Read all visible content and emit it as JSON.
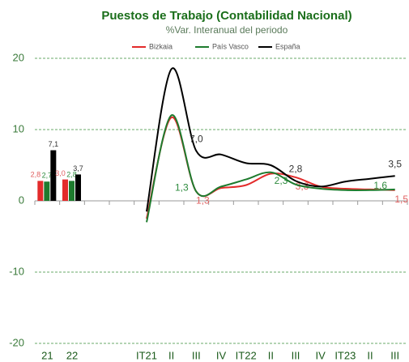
{
  "chart_data": [
    {
      "type": "bar",
      "title": "Puestos de Trabajo (Contabilidad Nacional)",
      "subtitle": "%Var. Interanual del periodo",
      "categories": [
        "21",
        "22"
      ],
      "series": [
        {
          "color": "#e32b2b",
          "values": [
            2.8,
            3.0
          ],
          "value_labels": [
            "2,8",
            "3,0"
          ]
        },
        {
          "color": "#1e7b2e",
          "values": [
            2.7,
            2.8
          ],
          "value_labels": [
            "2,7",
            "2,8"
          ]
        },
        {
          "color": "#000000",
          "values": [
            7.1,
            3.7
          ],
          "value_labels": [
            "7,1",
            "3,7"
          ]
        }
      ],
      "ylim": [
        -20,
        20
      ],
      "yticks": [
        -20,
        -10,
        0,
        10,
        20
      ],
      "grid": true
    },
    {
      "type": "line",
      "categories": [
        "IT21",
        "II",
        "III",
        "IV",
        "IT22",
        "II",
        "III",
        "IV",
        "IT23",
        "II",
        "III"
      ],
      "series": [
        {
          "name": "Bizkaia",
          "color": "#e32b2b",
          "values": [
            -2.5,
            11.7,
            1.3,
            1.8,
            2.2,
            3.8,
            3.3,
            2.0,
            1.7,
            1.6,
            1.5
          ],
          "value_labels": [
            null,
            null,
            "1,3",
            null,
            null,
            null,
            "3,3",
            null,
            null,
            null,
            "1,5"
          ]
        },
        {
          "name": "País Vasco",
          "color": "#1e7b2e",
          "values": [
            -3.0,
            12.0,
            1.3,
            2.0,
            3.0,
            4.0,
            2.3,
            1.7,
            1.5,
            1.5,
            1.6
          ],
          "value_labels": [
            null,
            null,
            "1,3",
            null,
            null,
            null,
            "2,3",
            null,
            null,
            null,
            "1,6"
          ]
        },
        {
          "name": "España",
          "color": "#000000",
          "values": [
            -1.5,
            18.5,
            7.0,
            6.5,
            5.3,
            5.0,
            2.8,
            2.0,
            2.7,
            3.1,
            3.5
          ],
          "value_labels": [
            null,
            null,
            "7,0",
            null,
            null,
            null,
            "2,8",
            null,
            null,
            null,
            "3,5"
          ]
        }
      ],
      "ylim": [
        -20,
        20
      ]
    }
  ]
}
